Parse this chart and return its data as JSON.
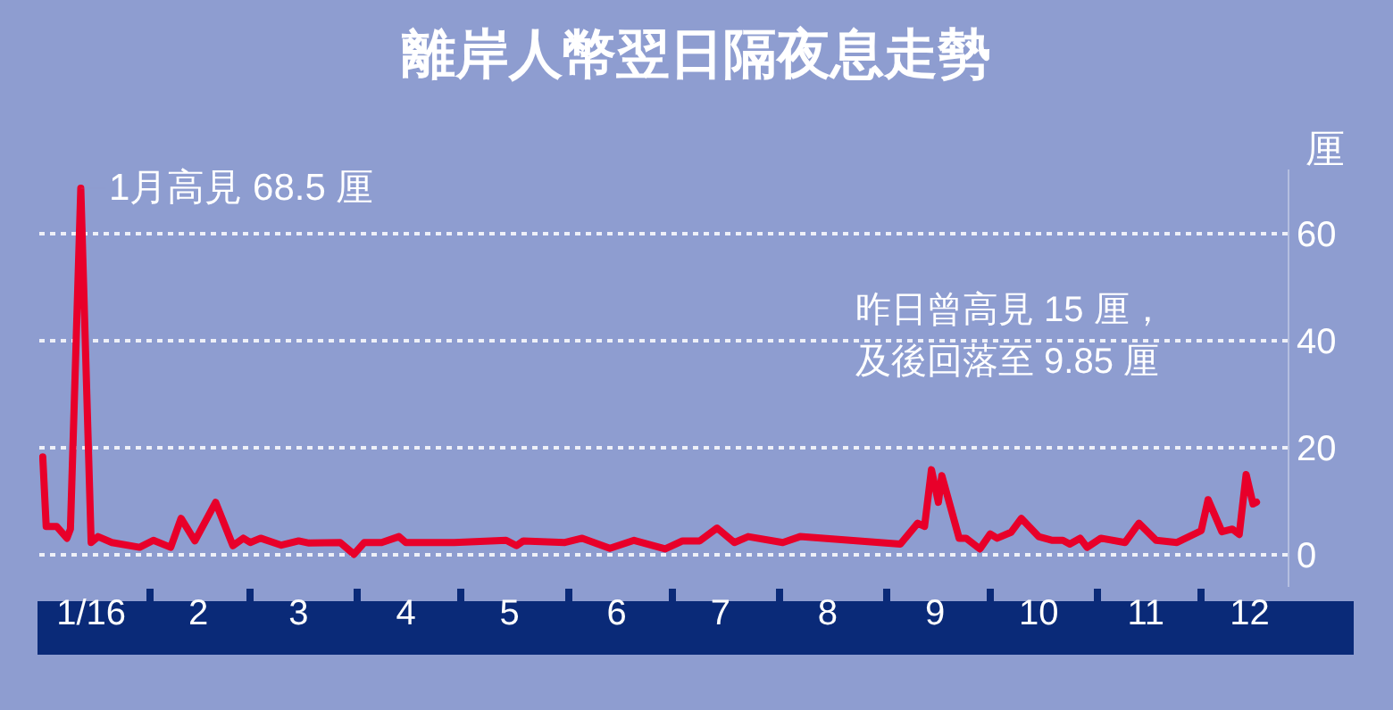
{
  "chart_data": {
    "type": "line",
    "title": "離岸人幣翌日隔夜息走勢",
    "ylabel": "厘",
    "x": [
      "2016-01-01",
      "2016-01-02",
      "2016-01-05",
      "2016-01-08",
      "2016-01-09",
      "2016-01-12",
      "2016-01-15",
      "2016-01-17",
      "2016-01-21",
      "2016-01-29",
      "2016-02-02",
      "2016-02-07",
      "2016-02-10",
      "2016-02-14",
      "2016-02-20",
      "2016-02-25",
      "2016-02-28",
      "2016-03-01",
      "2016-03-04",
      "2016-03-10",
      "2016-03-15",
      "2016-03-18",
      "2016-03-27",
      "2016-03-31",
      "2016-04-03",
      "2016-04-08",
      "2016-04-13",
      "2016-04-15",
      "2016-04-29",
      "2016-05-14",
      "2016-05-17",
      "2016-05-19",
      "2016-05-31",
      "2016-06-05",
      "2016-06-13",
      "2016-06-20",
      "2016-06-29",
      "2016-07-04",
      "2016-07-09",
      "2016-07-14",
      "2016-07-19",
      "2016-07-23",
      "2016-08-02",
      "2016-08-07",
      "2016-09-05",
      "2016-09-10",
      "2016-09-12",
      "2016-09-14",
      "2016-09-16",
      "2016-09-17",
      "2016-09-22",
      "2016-09-24",
      "2016-09-28",
      "2016-10-01",
      "2016-10-03",
      "2016-10-07",
      "2016-10-10",
      "2016-10-15",
      "2016-10-19",
      "2016-10-22",
      "2016-10-24",
      "2016-10-27",
      "2016-10-29",
      "2016-11-02",
      "2016-11-09",
      "2016-11-13",
      "2016-11-18",
      "2016-11-24",
      "2016-12-01",
      "2016-12-03",
      "2016-12-07",
      "2016-12-10",
      "2016-12-12",
      "2016-12-14",
      "2016-12-16",
      "2016-12-17"
    ],
    "series": [
      {
        "color": "#e8002a",
        "values": [
          18.3,
          5.3,
          5.3,
          3.1,
          4.8,
          68.5,
          2.3,
          3.4,
          2.3,
          1.4,
          2.7,
          1.4,
          6.8,
          2.6,
          9.8,
          1.7,
          3.1,
          2.3,
          3.1,
          1.8,
          2.6,
          2.2,
          2.3,
          0.1,
          2.3,
          2.3,
          3.4,
          2.3,
          2.3,
          2.7,
          1.7,
          2.6,
          2.3,
          3.1,
          1.2,
          2.7,
          1.1,
          2.6,
          2.6,
          5.0,
          2.3,
          3.4,
          2.3,
          3.4,
          2.0,
          5.9,
          5.3,
          15.9,
          9.8,
          14.8,
          3.1,
          3.1,
          1.1,
          3.9,
          3.1,
          4.2,
          6.8,
          3.4,
          2.7,
          2.7,
          2.0,
          3.1,
          1.4,
          3.1,
          2.3,
          5.9,
          2.7,
          2.3,
          4.5,
          10.3,
          4.3,
          4.8,
          3.8,
          15,
          9.5,
          9.85
        ]
      }
    ],
    "xlim": [
      "2015-12-31",
      "2016-12-26"
    ],
    "xticks": [
      {
        "value": "2016-01-15",
        "label": "1/16"
      },
      {
        "value": "2016-02-15",
        "label": "2"
      },
      {
        "value": "2016-03-15",
        "label": "3"
      },
      {
        "value": "2016-04-15",
        "label": "4"
      },
      {
        "value": "2016-05-15",
        "label": "5"
      },
      {
        "value": "2016-06-15",
        "label": "6"
      },
      {
        "value": "2016-07-15",
        "label": "7"
      },
      {
        "value": "2016-08-15",
        "label": "8"
      },
      {
        "value": "2016-09-15",
        "label": "9"
      },
      {
        "value": "2016-10-15",
        "label": "10"
      },
      {
        "value": "2016-11-15",
        "label": "11"
      },
      {
        "value": "2016-12-15",
        "label": "12"
      },
      {
        "value": "2016-02-01",
        "label": null
      },
      {
        "value": "2016-03-01",
        "label": null
      },
      {
        "value": "2016-04-01",
        "label": null
      },
      {
        "value": "2016-05-01",
        "label": null
      },
      {
        "value": "2016-06-01",
        "label": null
      },
      {
        "value": "2016-07-01",
        "label": null
      },
      {
        "value": "2016-08-01",
        "label": null
      },
      {
        "value": "2016-09-01",
        "label": null
      },
      {
        "value": "2016-10-01",
        "label": null
      },
      {
        "value": "2016-11-01",
        "label": null
      },
      {
        "value": "2016-12-01",
        "label": null
      }
    ],
    "ylim": [
      -6,
      72
    ],
    "yticks": [
      0,
      20,
      40,
      60
    ],
    "grid": "y",
    "marker": "none",
    "line_style": "solid",
    "annotations": [
      {
        "text": "1月高見 68.5 厘",
        "x": "2016-01-12",
        "y": 68.5
      },
      "昨日曾高見 15 厘，",
      "及後回落至 9.85 厘"
    ]
  }
}
